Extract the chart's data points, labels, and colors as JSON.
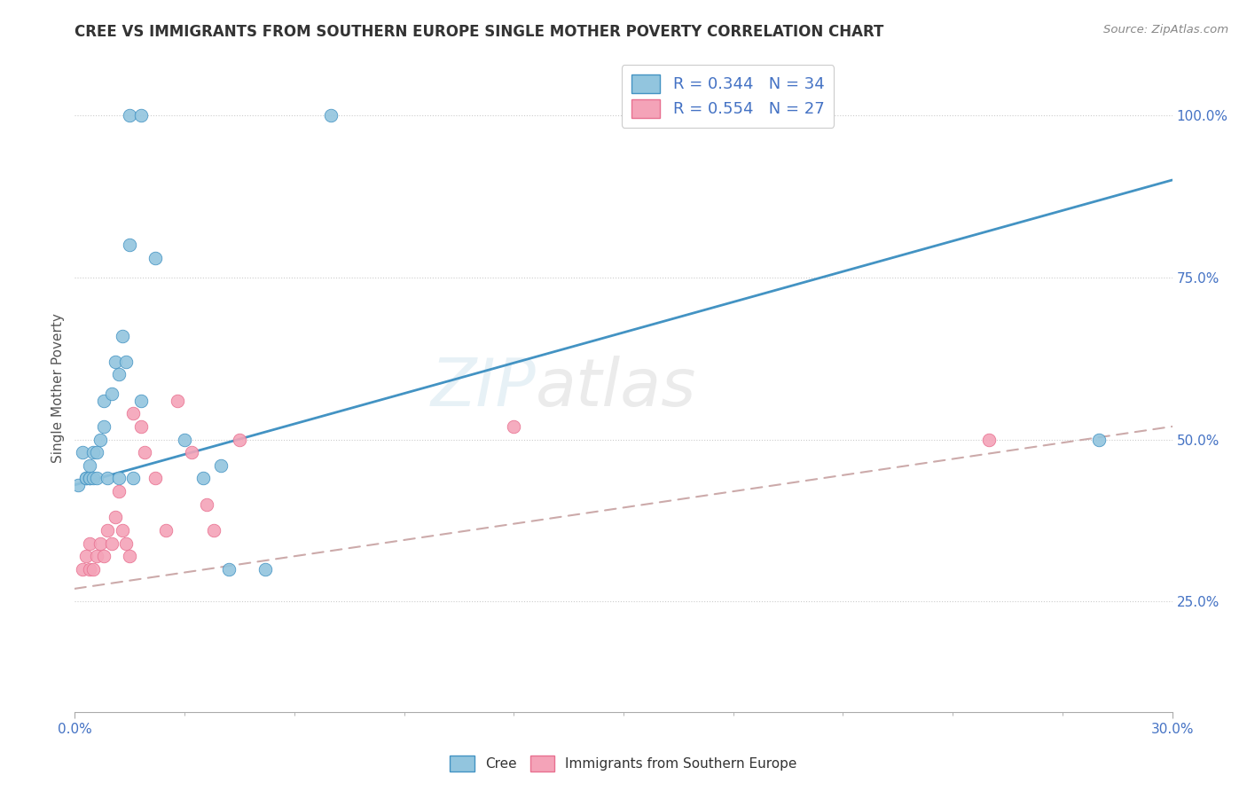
{
  "title": "CREE VS IMMIGRANTS FROM SOUTHERN EUROPE SINGLE MOTHER POVERTY CORRELATION CHART",
  "source": "Source: ZipAtlas.com",
  "ylabel": "Single Mother Poverty",
  "ytick_labels": [
    "25.0%",
    "50.0%",
    "75.0%",
    "100.0%"
  ],
  "ytick_values": [
    0.25,
    0.5,
    0.75,
    1.0
  ],
  "xlim": [
    0.0,
    0.3
  ],
  "ylim": [
    0.08,
    1.08
  ],
  "legend_cree": "R = 0.344   N = 34",
  "legend_imm": "R = 0.554   N = 27",
  "cree_color": "#92c5de",
  "imm_color": "#f4a3b8",
  "cree_line_color": "#4393c3",
  "imm_line_color": "#e87090",
  "cree_x": [
    0.001,
    0.015,
    0.018,
    0.002,
    0.003,
    0.003,
    0.004,
    0.004,
    0.004,
    0.005,
    0.005,
    0.006,
    0.006,
    0.007,
    0.008,
    0.008,
    0.009,
    0.01,
    0.011,
    0.012,
    0.012,
    0.013,
    0.014,
    0.015,
    0.016,
    0.018,
    0.022,
    0.03,
    0.035,
    0.04,
    0.042,
    0.052,
    0.07,
    0.28
  ],
  "cree_y": [
    0.43,
    1.0,
    1.0,
    0.48,
    0.44,
    0.44,
    0.44,
    0.44,
    0.46,
    0.44,
    0.48,
    0.44,
    0.48,
    0.5,
    0.52,
    0.56,
    0.44,
    0.57,
    0.62,
    0.6,
    0.44,
    0.66,
    0.62,
    0.8,
    0.44,
    0.56,
    0.78,
    0.5,
    0.44,
    0.46,
    0.3,
    0.3,
    1.0,
    0.5
  ],
  "imm_x": [
    0.002,
    0.003,
    0.004,
    0.004,
    0.005,
    0.006,
    0.007,
    0.008,
    0.009,
    0.01,
    0.011,
    0.012,
    0.013,
    0.014,
    0.015,
    0.016,
    0.018,
    0.019,
    0.022,
    0.025,
    0.028,
    0.032,
    0.036,
    0.038,
    0.045,
    0.12,
    0.25
  ],
  "imm_y": [
    0.3,
    0.32,
    0.3,
    0.34,
    0.3,
    0.32,
    0.34,
    0.32,
    0.36,
    0.34,
    0.38,
    0.42,
    0.36,
    0.34,
    0.32,
    0.54,
    0.52,
    0.48,
    0.44,
    0.36,
    0.56,
    0.48,
    0.4,
    0.36,
    0.5,
    0.52,
    0.5
  ],
  "cree_trend_x": [
    0.0,
    0.3
  ],
  "cree_trend_y": [
    0.43,
    0.9
  ],
  "imm_trend_x": [
    0.0,
    0.3
  ],
  "imm_trend_y": [
    0.27,
    0.52
  ],
  "background_color": "#ffffff",
  "grid_color": "#cccccc"
}
